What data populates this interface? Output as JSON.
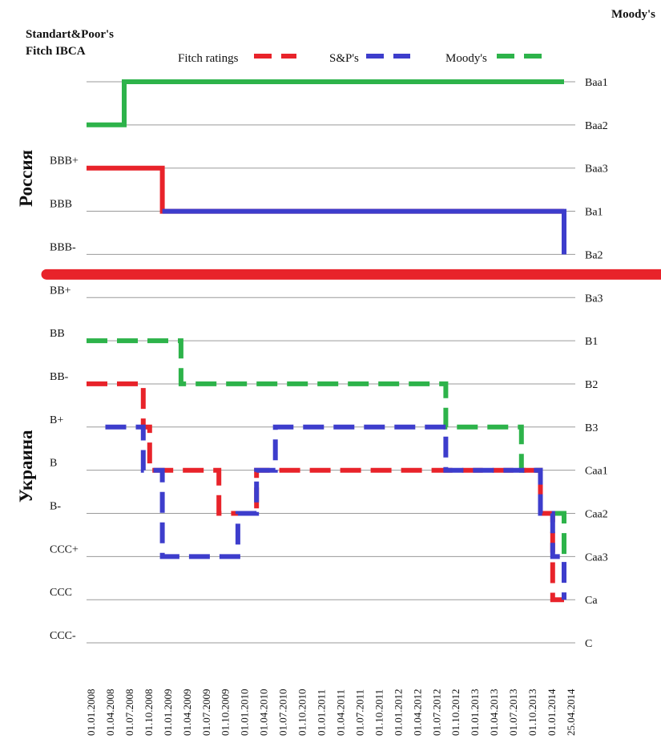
{
  "chart_data": {
    "type": "line",
    "step": true,
    "title": "",
    "left_axis_title": [
      "Standart&Poor's",
      "Fitch IBCA"
    ],
    "right_axis_title": "Moody's",
    "left_ticks": [
      "BBB+",
      "BBB",
      "BBB-",
      "BB+",
      "BB",
      "BB-",
      "B+",
      "B",
      "B-",
      "CCC+",
      "CCC",
      "CCC-"
    ],
    "right_ticks": [
      "Baa1",
      "Baa2",
      "Baa3",
      "Ba1",
      "Ba2",
      "Ba3",
      "B1",
      "B2",
      "B3",
      "Caa1",
      "Caa2",
      "Caa3",
      "Ca",
      "C"
    ],
    "x_ticks": [
      "01.01.2008",
      "01.04.2008",
      "01.07.2008",
      "01.10.2008",
      "01.01.2009",
      "01.04.2009",
      "01.07.2009",
      "01.10.2009",
      "01.01.2010",
      "01.04.2010",
      "01.07.2010",
      "01.10.2010",
      "01.01.2011",
      "01.04.2011",
      "01.07.2011",
      "01.10.2011",
      "01.01.2012",
      "01.04.2012",
      "01.07.2012",
      "01.10.2012",
      "01.01.2013",
      "01.04.2013",
      "01.07.2013",
      "01.10.2013",
      "01.01.2014",
      "25.04.2014"
    ],
    "region_labels": {
      "upper": "Россия",
      "lower": "Украина"
    },
    "legend_placement": "top",
    "grid": true,
    "colors": {
      "fitch": "#e8232a",
      "sp": "#3d3dcc",
      "moodys": "#2db34a",
      "divider": "#e8232a"
    },
    "series": [
      {
        "name": "Fitch ratings",
        "key": "fitch",
        "region": "Россия",
        "dashed": false,
        "color": "#e8232a",
        "points": [
          [
            "01.01.2008",
            "BBB+"
          ],
          [
            "01.01.2009",
            "BBB+"
          ],
          [
            "01.01.2009",
            "BBB"
          ],
          [
            "25.04.2014",
            "BBB"
          ]
        ]
      },
      {
        "name": "S&P's",
        "key": "sp",
        "region": "Россия",
        "dashed": false,
        "color": "#3d3dcc",
        "points": [
          [
            "01.01.2009",
            "BBB"
          ],
          [
            "25.04.2014",
            "BBB"
          ],
          [
            "25.04.2014",
            "BBB-"
          ]
        ]
      },
      {
        "name": "Moody's",
        "key": "moodys",
        "region": "Россия",
        "dashed": false,
        "color": "#2db34a",
        "points": [
          [
            "01.01.2008",
            "Baa2"
          ],
          [
            "01.07.2008",
            "Baa2"
          ],
          [
            "01.07.2008",
            "Baa1"
          ],
          [
            "25.04.2014",
            "Baa1"
          ]
        ]
      },
      {
        "name": "Fitch ratings",
        "key": "fitch",
        "region": "Украина",
        "dashed": true,
        "color": "#e8232a",
        "points": [
          [
            "01.01.2008",
            "BB-"
          ],
          [
            "01.10.2008",
            "BB-"
          ],
          [
            "01.10.2008",
            "B+"
          ],
          [
            "01.11.2008",
            "B+"
          ],
          [
            "01.11.2008",
            "B"
          ],
          [
            "01.10.2009",
            "B"
          ],
          [
            "01.10.2009",
            "B-"
          ],
          [
            "01.04.2010",
            "B-"
          ],
          [
            "01.04.2010",
            "B"
          ],
          [
            "01.01.2014",
            "B"
          ],
          [
            "01.01.2014",
            "B-"
          ],
          [
            "01.03.2014",
            "B-"
          ],
          [
            "01.03.2014",
            "CCC"
          ],
          [
            "25.04.2014",
            "CCC"
          ]
        ]
      },
      {
        "name": "S&P's",
        "key": "sp",
        "region": "Украина",
        "dashed": true,
        "color": "#3d3dcc",
        "points": [
          [
            "01.04.2008",
            "B+"
          ],
          [
            "01.10.2008",
            "B+"
          ],
          [
            "01.10.2008",
            "B"
          ],
          [
            "01.01.2009",
            "B"
          ],
          [
            "01.01.2009",
            "CCC+"
          ],
          [
            "01.01.2010",
            "CCC+"
          ],
          [
            "01.01.2010",
            "B-"
          ],
          [
            "01.04.2010",
            "B-"
          ],
          [
            "01.04.2010",
            "B"
          ],
          [
            "01.07.2010",
            "B"
          ],
          [
            "01.07.2010",
            "B+"
          ],
          [
            "01.10.2012",
            "B+"
          ],
          [
            "01.10.2012",
            "B"
          ],
          [
            "01.01.2014",
            "B"
          ],
          [
            "01.01.2014",
            "B-"
          ],
          [
            "01.03.2014",
            "B-"
          ],
          [
            "01.03.2014",
            "CCC+"
          ],
          [
            "25.04.2014",
            "CCC+"
          ],
          [
            "25.04.2014",
            "CCC"
          ]
        ]
      },
      {
        "name": "Moody's",
        "key": "moodys",
        "region": "Украина",
        "dashed": true,
        "color": "#2db34a",
        "points": [
          [
            "01.01.2008",
            "B1"
          ],
          [
            "01.04.2009",
            "B1"
          ],
          [
            "01.04.2009",
            "B2"
          ],
          [
            "01.10.2012",
            "B2"
          ],
          [
            "01.10.2012",
            "B3"
          ],
          [
            "01.10.2013",
            "B3"
          ],
          [
            "01.10.2013",
            "Caa1"
          ],
          [
            "01.01.2014",
            "Caa1"
          ],
          [
            "01.01.2014",
            "Caa2"
          ],
          [
            "25.04.2014",
            "Caa2"
          ],
          [
            "25.04.2014",
            "Caa3"
          ]
        ]
      }
    ]
  }
}
